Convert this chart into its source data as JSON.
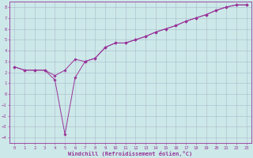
{
  "xlabel": "Windchill (Refroidissement éolien,°C)",
  "background_color": "#cce8e8",
  "grid_color": "#aabbcc",
  "line_color": "#993399",
  "xlim": [
    -0.5,
    23.5
  ],
  "ylim": [
    -4.5,
    8.5
  ],
  "xticks": [
    0,
    1,
    2,
    3,
    4,
    5,
    6,
    7,
    8,
    9,
    10,
    11,
    12,
    13,
    14,
    15,
    16,
    17,
    18,
    19,
    20,
    21,
    22,
    23
  ],
  "yticks": [
    -4,
    -3,
    -2,
    -1,
    0,
    1,
    2,
    3,
    4,
    5,
    6,
    7,
    8
  ],
  "line1_x": [
    0,
    1,
    2,
    3,
    4,
    5,
    6,
    7,
    8,
    9,
    10,
    11,
    12,
    13,
    14,
    15,
    16,
    17,
    18,
    19,
    20,
    21,
    22,
    23
  ],
  "line1_y": [
    2.5,
    2.2,
    2.2,
    2.2,
    1.7,
    2.2,
    3.2,
    3.0,
    3.3,
    4.3,
    4.7,
    4.7,
    5.0,
    5.3,
    5.7,
    6.0,
    6.3,
    6.7,
    7.0,
    7.3,
    7.7,
    8.0,
    8.2,
    8.2
  ],
  "line2_x": [
    0,
    1,
    2,
    3,
    4,
    5,
    6,
    7,
    8,
    9,
    10,
    11,
    12,
    13,
    14,
    15,
    16,
    17,
    18,
    19,
    20,
    21,
    22,
    23
  ],
  "line2_y": [
    2.5,
    2.2,
    2.2,
    2.2,
    1.3,
    -3.7,
    1.5,
    3.0,
    3.3,
    4.3,
    4.7,
    4.7,
    5.0,
    5.3,
    5.7,
    6.0,
    6.3,
    6.7,
    7.0,
    7.3,
    7.7,
    8.0,
    8.2,
    8.2
  ],
  "tick_fontsize": 4.0,
  "xlabel_fontsize": 5.0
}
